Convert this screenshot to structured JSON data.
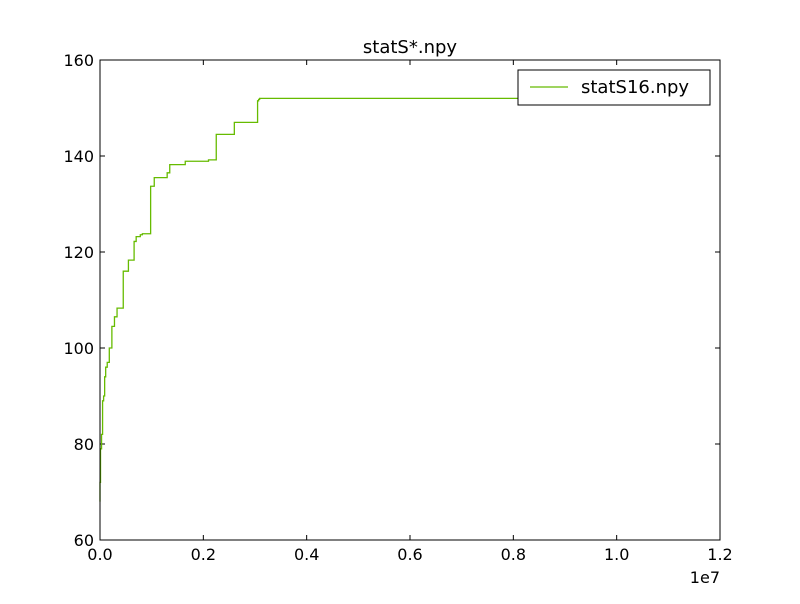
{
  "chart_data": {
    "type": "line",
    "title": "statS*.npy",
    "xlabel": "",
    "ylabel": "",
    "x_offset_label": "1e7",
    "xlim": [
      0,
      1.2
    ],
    "ylim": [
      60,
      160
    ],
    "x_ticks": [
      0.0,
      0.2,
      0.4,
      0.6,
      0.8,
      1.0,
      1.2
    ],
    "x_tick_labels": [
      "0.0",
      "0.2",
      "0.4",
      "0.6",
      "0.8",
      "1.0",
      "1.2"
    ],
    "y_ticks": [
      60,
      80,
      100,
      120,
      140,
      160
    ],
    "y_tick_labels": [
      "60",
      "80",
      "100",
      "120",
      "140",
      "160"
    ],
    "grid": false,
    "legend_position": "upper right",
    "series": [
      {
        "name": "statS16.npy",
        "color": "#66bb00",
        "x": [
          0.0,
          0.0,
          0.001,
          0.001,
          0.003,
          0.003,
          0.005,
          0.005,
          0.007,
          0.007,
          0.009,
          0.009,
          0.011,
          0.011,
          0.014,
          0.014,
          0.018,
          0.018,
          0.023,
          0.023,
          0.028,
          0.028,
          0.033,
          0.033,
          0.045,
          0.045,
          0.055,
          0.055,
          0.066,
          0.066,
          0.07,
          0.07,
          0.078,
          0.078,
          0.082,
          0.082,
          0.098,
          0.098,
          0.105,
          0.105,
          0.13,
          0.13,
          0.135,
          0.135,
          0.165,
          0.165,
          0.21,
          0.21,
          0.225,
          0.225,
          0.26,
          0.26,
          0.305,
          0.305,
          0.307,
          0.307,
          0.309,
          0.309,
          0.311,
          0.311,
          0.605,
          0.605,
          0.9,
          0.9,
          1.0
        ],
        "y": [
          68,
          72,
          72,
          79,
          79,
          82,
          82,
          89,
          89,
          90,
          90,
          94,
          94,
          96,
          96,
          97,
          97,
          100,
          100,
          104.5,
          104.5,
          106.5,
          106.5,
          108.3,
          108.3,
          116,
          116,
          118.3,
          118.3,
          122.2,
          122.2,
          123.2,
          123.2,
          123.6,
          123.6,
          123.8,
          123.8,
          133.7,
          133.7,
          135.5,
          135.5,
          136.5,
          136.5,
          138.2,
          138.2,
          138.9,
          138.9,
          139.2,
          139.2,
          144.5,
          144.5,
          147,
          147,
          151.5,
          151.5,
          151.8,
          151.8,
          152,
          152,
          152,
          152,
          152,
          152,
          152,
          152
        ]
      }
    ]
  }
}
